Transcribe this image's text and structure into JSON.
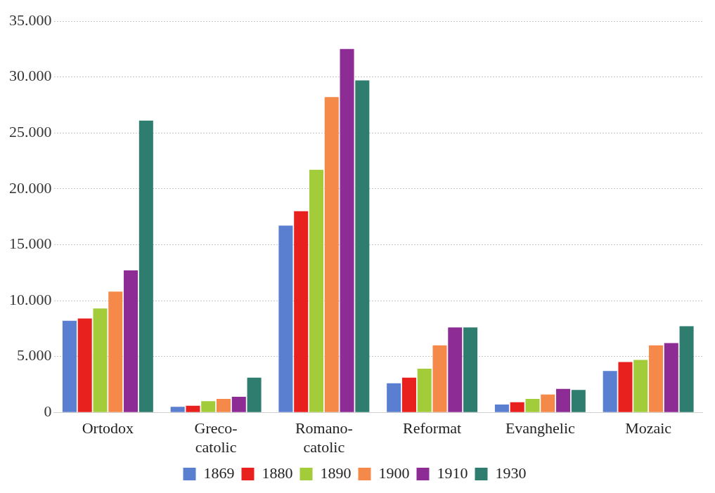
{
  "chart_data": {
    "type": "bar",
    "categories": [
      "Ortodox",
      "Greco-catolic",
      "Romano-catolic",
      "Reformat",
      "Evanghelic",
      "Mozaic"
    ],
    "series": [
      {
        "name": "1869",
        "color": "#5b7fd0",
        "values": [
          8200,
          500,
          16700,
          2600,
          700,
          3700
        ]
      },
      {
        "name": "1880",
        "color": "#e8201e",
        "values": [
          8400,
          600,
          18000,
          3100,
          900,
          4500
        ]
      },
      {
        "name": "1890",
        "color": "#a3cc3a",
        "values": [
          9300,
          1000,
          21700,
          3900,
          1200,
          4700
        ]
      },
      {
        "name": "1900",
        "color": "#f4894a",
        "values": [
          10800,
          1200,
          28200,
          6000,
          1600,
          6000
        ]
      },
      {
        "name": "1910",
        "color": "#8e2c96",
        "values": [
          12700,
          1400,
          32500,
          7600,
          2100,
          6200
        ]
      },
      {
        "name": "1930",
        "color": "#2e7d6f",
        "values": [
          26100,
          3100,
          29700,
          7600,
          2000,
          7700
        ]
      }
    ],
    "ylim": [
      0,
      35000
    ],
    "yticks": [
      {
        "value": 0,
        "label": "0"
      },
      {
        "value": 5000,
        "label": "5.000"
      },
      {
        "value": 10000,
        "label": "10.000"
      },
      {
        "value": 15000,
        "label": "15.000"
      },
      {
        "value": 20000,
        "label": "20.000"
      },
      {
        "value": 25000,
        "label": "25.000"
      },
      {
        "value": 30000,
        "label": "30.000"
      },
      {
        "value": 35000,
        "label": "35.000"
      }
    ],
    "grid": "y",
    "legend": "bottom"
  }
}
